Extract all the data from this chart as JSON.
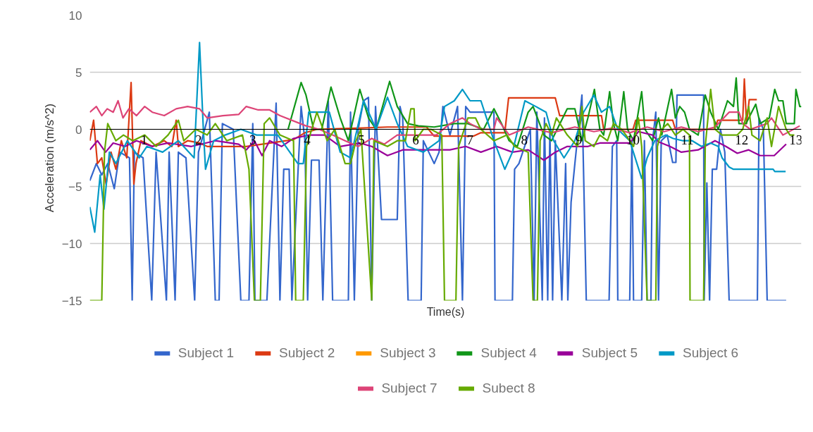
{
  "chart_data": {
    "type": "line",
    "xlabel": "Time(s)",
    "ylabel": "Acceleration (m/s^2)",
    "xlim": [
      0,
      13.1
    ],
    "ylim": [
      -15,
      10
    ],
    "yticks": [
      -15,
      -10,
      -5,
      0,
      5,
      10
    ],
    "xticks": [
      1,
      2,
      3,
      4,
      5,
      6,
      7,
      8,
      9,
      10,
      11,
      12,
      13
    ],
    "grid": "y",
    "legend": "bottom",
    "line_style": "solid",
    "series": [
      {
        "name": "Subject 1",
        "color": "#3366cc",
        "x": [
          0,
          0.12,
          0.22,
          0.33,
          0.45,
          0.55,
          0.73,
          0.78,
          0.82,
          0.98,
          1.14,
          1.22,
          1.41,
          1.46,
          1.57,
          1.63,
          1.77,
          1.93,
          2.0,
          2.2,
          2.31,
          2.38,
          2.44,
          2.64,
          2.78,
          2.93,
          3.0,
          3.04,
          3.26,
          3.43,
          3.5,
          3.57,
          3.67,
          3.72,
          3.89,
          3.96,
          4.01,
          4.08,
          4.22,
          4.29,
          4.39,
          4.47,
          4.55,
          4.76,
          4.8,
          4.87,
          4.94,
          5.04,
          5.13,
          5.19,
          5.26,
          5.37,
          5.66,
          5.71,
          5.76,
          5.86,
          6.1,
          6.14,
          6.24,
          6.34,
          6.43,
          6.5,
          6.63,
          6.77,
          6.86,
          6.92,
          7.0,
          7.2,
          7.44,
          7.46,
          7.78,
          7.82,
          7.9,
          7.97,
          8.11,
          8.18,
          8.23,
          8.33,
          8.37,
          8.43,
          8.47,
          8.52,
          8.57,
          8.69,
          8.76,
          8.8,
          8.86,
          8.93,
          9.06,
          9.14,
          9.2,
          9.56,
          9.62,
          9.7,
          9.72,
          9.94,
          9.98,
          10.01,
          10.16,
          10.21,
          10.26,
          10.33,
          10.36,
          10.42,
          10.47,
          10.52,
          10.63,
          10.73,
          10.79,
          10.81,
          11.3,
          11.31,
          11.36,
          11.41,
          11.46,
          11.54,
          11.61,
          11.69,
          11.77,
          12.29,
          12.32,
          12.4,
          12.47,
          12.82
        ],
        "values": [
          -4.5,
          -3,
          -4,
          -3,
          -5.2,
          -2,
          -2.5,
          -15,
          -2,
          -2.5,
          -15,
          -2,
          -15,
          -2,
          -15,
          -2,
          -2.5,
          -15,
          -2,
          1.5,
          -15,
          -15,
          0.5,
          0,
          -15,
          -15,
          0.5,
          -15,
          -15,
          2.3,
          -15,
          -3.5,
          -3.5,
          -15,
          2,
          -1,
          -15,
          -2.7,
          -2.7,
          -15,
          2.5,
          -15,
          -15,
          -15,
          1.5,
          -15,
          0,
          2.5,
          2.8,
          -15,
          2,
          -7.9,
          -7.9,
          2,
          1,
          -15,
          -15,
          -1,
          -2,
          -3,
          -2,
          2,
          -0.5,
          2,
          -15,
          2,
          1.5,
          1.5,
          1.5,
          -15,
          -15,
          -3.5,
          -3,
          -2,
          0,
          -15,
          1.5,
          -15,
          1,
          -15,
          0,
          -15,
          -1,
          -15,
          -3,
          -15,
          -6.4,
          -3,
          3,
          -15,
          -15,
          -15,
          -1.5,
          -1,
          -15,
          -15,
          -1,
          -15,
          -15,
          -1,
          -15,
          -15,
          -1,
          1.5,
          -15,
          -1,
          -0.5,
          -2.9,
          -2.9,
          3,
          3,
          -15,
          -4.7,
          -15,
          -3.5,
          -3.5,
          0,
          -2,
          -15,
          -15,
          1,
          0,
          -15,
          -15
        ]
      },
      {
        "name": "Subject 2",
        "color": "#dc3912",
        "x": [
          0,
          0.07,
          0.14,
          0.22,
          0.3,
          0.39,
          0.48,
          0.58,
          0.68,
          0.76,
          0.81,
          0.85,
          0.94,
          1.15,
          1.37,
          1.51,
          1.59,
          1.63,
          1.8,
          2.02,
          2.16,
          2.88,
          3.75,
          3.96,
          4.18,
          4.9,
          5.48,
          6.2,
          6.34,
          7.06,
          7.2,
          7.64,
          7.71,
          8.57,
          8.65,
          9.42,
          9.46,
          10.0,
          10.05,
          10.73,
          10.78,
          11.5,
          11.56,
          12.02,
          12.05,
          12.09,
          12.14,
          12.28
        ],
        "values": [
          -1,
          0.8,
          -3,
          -2.5,
          -4.8,
          -2,
          -3.5,
          -1,
          -2.5,
          4.1,
          -4.8,
          -3,
          -1,
          -1.5,
          -1,
          -1.5,
          0.8,
          -1.5,
          -1,
          -1.2,
          -1.5,
          -1.5,
          -0.9,
          -0.3,
          0,
          0.1,
          0.2,
          0.2,
          -0.6,
          -0.6,
          -0.3,
          -0.3,
          2.75,
          2.75,
          1.2,
          1.2,
          0,
          0,
          0.8,
          0.8,
          0,
          0,
          0.8,
          0.8,
          4.4,
          0.5,
          2.6,
          2.6
        ]
      },
      {
        "name": "Subject 3",
        "color": "#ff9900"
      },
      {
        "name": "Subject 4",
        "color": "#109618",
        "x": [
          3.65,
          3.89,
          3.98,
          4.12,
          4.27,
          4.44,
          4.61,
          4.76,
          4.97,
          5.13,
          5.27,
          5.52,
          5.66,
          5.85,
          6.05,
          6.34,
          6.71,
          6.96,
          7.25,
          7.44,
          7.58,
          7.72,
          7.87,
          8.07,
          8.16,
          8.36,
          8.5,
          8.79,
          8.93,
          9.06,
          9.17,
          9.29,
          9.39,
          9.46,
          9.57,
          9.64,
          9.72,
          9.83,
          9.9,
          10.01,
          10.16,
          10.22,
          10.36,
          10.47,
          10.53,
          10.71,
          10.78,
          10.86,
          10.95,
          11.04,
          11.2,
          11.33,
          11.43,
          11.57,
          11.74,
          11.85,
          11.9,
          11.95,
          12.08,
          12.26,
          12.34,
          12.51,
          12.61,
          12.68,
          12.76,
          12.82,
          12.97,
          13.0,
          13.07,
          13.1
        ],
        "values": [
          0,
          4.1,
          3,
          0,
          0,
          3.7,
          1,
          -1,
          3.5,
          1,
          0,
          4.2,
          2,
          0.5,
          0.3,
          0.2,
          0.5,
          0.5,
          0,
          1.8,
          0.5,
          -1,
          -1.5,
          1.5,
          2,
          -0.5,
          -1,
          1.8,
          1.8,
          -1,
          1,
          3.5,
          0,
          -0.5,
          3.3,
          0.5,
          -1,
          3.3,
          0,
          -1,
          3.3,
          0,
          -1,
          1,
          -0.5,
          3.5,
          1,
          2,
          1.5,
          0,
          -0.5,
          3,
          1.5,
          0,
          2.5,
          2,
          4.5,
          0.5,
          0.5,
          2.2,
          0.5,
          1,
          3.5,
          2.5,
          2.5,
          0.5,
          0.5,
          3.5,
          2,
          2
        ]
      },
      {
        "name": "Subject 5",
        "color": "#990099",
        "x": [
          0,
          0.14,
          0.29,
          0.43,
          0.65,
          0.86,
          1.15,
          1.44,
          1.87,
          2.31,
          2.74,
          2.88,
          3.03,
          3.17,
          3.31,
          3.53,
          3.75,
          4.03,
          4.32,
          4.61,
          4.97,
          5.19,
          5.48,
          5.76,
          6.2,
          6.63,
          6.92,
          7.2,
          7.49,
          7.78,
          8.07,
          8.36,
          8.57,
          8.79,
          9.17,
          9.39,
          9.72,
          9.94,
          10.1,
          10.36,
          10.47,
          10.68,
          10.89,
          11.2,
          11.51,
          11.71,
          11.92,
          12.13,
          12.34,
          12.6,
          12.82
        ],
        "values": [
          -1.8,
          -1,
          -2,
          -1.2,
          -1.5,
          -1,
          -1.5,
          -1.2,
          -1.5,
          -1,
          -1.3,
          -1.8,
          -1,
          -2.3,
          -1,
          -1.5,
          -0.8,
          -0.5,
          -0.5,
          -1.5,
          -1.2,
          -1.5,
          -2.3,
          -1.8,
          -1.8,
          -1.8,
          -1.5,
          -2,
          -1.5,
          -2,
          -1.8,
          -2.7,
          -2,
          -1.5,
          -1.5,
          -1.2,
          -1.2,
          -1.2,
          -0.2,
          -0.5,
          -1.1,
          -1.5,
          -2,
          -1.8,
          -1,
          -1.5,
          -2.1,
          -1.8,
          -2.3,
          -2.3,
          -1.3
        ]
      },
      {
        "name": "Subject 6",
        "color": "#0099c6",
        "x": [
          0,
          0.09,
          0.19,
          0.26,
          0.36,
          0.48,
          0.69,
          0.91,
          1.05,
          1.34,
          1.63,
          1.92,
          2.02,
          2.09,
          2.13,
          2.28,
          2.49,
          2.78,
          3.07,
          3.46,
          3.83,
          3.93,
          4.03,
          4.41,
          4.61,
          4.8,
          5.04,
          5.27,
          5.48,
          5.66,
          5.85,
          6.14,
          6.43,
          6.53,
          6.71,
          6.86,
          7.0,
          7.2,
          7.44,
          7.64,
          7.78,
          8.01,
          8.21,
          8.4,
          8.54,
          8.73,
          8.93,
          9.09,
          9.28,
          9.42,
          9.57,
          9.72,
          9.94,
          10.16,
          10.26,
          10.4,
          10.6,
          10.74,
          10.92,
          11.09,
          11.26,
          11.43,
          11.57,
          11.64,
          11.77,
          11.85,
          12.58,
          12.61,
          12.81
        ],
        "values": [
          -6.8,
          -9,
          -4,
          -7,
          -2,
          -3,
          -1,
          -2.5,
          -1.5,
          -2,
          -1,
          -2.5,
          7.6,
          0,
          -3.5,
          -1,
          -0.5,
          0,
          -0.5,
          -0.5,
          -3,
          -3,
          1.5,
          1.5,
          -2,
          -2.5,
          2.5,
          0,
          2.8,
          0.5,
          -1.5,
          -2,
          -1,
          2,
          2.5,
          3.5,
          2.5,
          2.5,
          -1,
          -3.5,
          -2,
          2.5,
          2,
          1.5,
          -1,
          -2.5,
          -1,
          1.5,
          3,
          1.5,
          2,
          0,
          -1,
          -4.3,
          -2.5,
          -1,
          -0.5,
          -0.8,
          -1,
          -1,
          -1.5,
          -1.2,
          -1.5,
          -2.5,
          -3.3,
          -3.5,
          -3.5,
          -3.7,
          -3.7
        ]
      },
      {
        "name": "Subject 7",
        "color": "#dd4477",
        "x": [
          0,
          0.12,
          0.22,
          0.32,
          0.43,
          0.52,
          0.61,
          0.72,
          0.86,
          1.01,
          1.15,
          1.37,
          1.59,
          1.8,
          2.02,
          2.16,
          2.45,
          2.74,
          2.88,
          3.1,
          3.31,
          3.5,
          3.98,
          4.22,
          4.47,
          4.7,
          4.94,
          5.19,
          5.42,
          5.66,
          5.91,
          6.14,
          6.38,
          6.63,
          6.86,
          7.0,
          7.2,
          7.44,
          7.49,
          7.72,
          8.07,
          8.5,
          8.93,
          9.28,
          9.61,
          9.94,
          10.26,
          10.57,
          10.89,
          11.2,
          11.51,
          11.77,
          11.95,
          12.02,
          12.16,
          12.47,
          12.55,
          12.76,
          13.07
        ],
        "values": [
          1.5,
          2,
          1.2,
          1.8,
          1.5,
          2.5,
          1,
          1.8,
          1.2,
          2,
          1.5,
          1.2,
          1.8,
          2,
          1.8,
          1,
          1.2,
          1.3,
          2,
          1.7,
          1.7,
          1.2,
          0.3,
          0,
          -0.5,
          -1,
          -1.5,
          -0.8,
          -1.3,
          -0.5,
          -0.5,
          -0.5,
          -0.5,
          0.5,
          1,
          0.5,
          0,
          0,
          1,
          -0.5,
          0.2,
          -0.3,
          0.2,
          -0.2,
          0.1,
          -0.3,
          0.2,
          -0.2,
          0.2,
          -0.2,
          0.2,
          1.5,
          1.5,
          0.5,
          0,
          0.5,
          1,
          -0.5,
          0.3
        ]
      },
      {
        "name": "Subect 8",
        "color": "#66aa00",
        "x": [
          0,
          0.22,
          0.27,
          0.33,
          0.48,
          0.62,
          0.79,
          1.01,
          1.22,
          1.44,
          1.63,
          1.73,
          1.95,
          2.16,
          2.31,
          2.52,
          2.81,
          2.93,
          3.03,
          3.14,
          3.21,
          3.31,
          3.5,
          3.75,
          3.79,
          3.93,
          3.99,
          4.18,
          4.37,
          4.51,
          4.7,
          4.8,
          4.9,
          4.99,
          5.19,
          5.23,
          5.48,
          5.66,
          5.81,
          5.91,
          5.97,
          5.99,
          6.14,
          6.28,
          6.48,
          6.53,
          6.74,
          6.79,
          6.96,
          7.1,
          7.2,
          7.44,
          7.68,
          7.82,
          8.07,
          8.16,
          8.24,
          8.29,
          8.4,
          8.5,
          8.59,
          8.79,
          8.98,
          9.06,
          9.12,
          9.28,
          9.39,
          9.53,
          9.64,
          9.79,
          9.87,
          10.01,
          10.1,
          10.16,
          10.26,
          10.42,
          10.45,
          10.53,
          10.64,
          10.78,
          10.92,
          11.04,
          11.05,
          11.3,
          11.33,
          11.43,
          11.51,
          11.64,
          11.92,
          12.02,
          12.13,
          12.19,
          12.34,
          12.47,
          12.55,
          12.68,
          12.82,
          12.89,
          12.97
        ],
        "values": [
          -15,
          -15,
          -2,
          0.5,
          -1,
          -0.5,
          -1,
          -0.5,
          -1.5,
          -0.5,
          0.8,
          -1,
          0,
          -0.5,
          0.5,
          -1,
          -0.5,
          -3.5,
          -15,
          -15,
          0.5,
          1,
          -0.5,
          -1,
          -15,
          -15,
          -1.5,
          1.5,
          -1,
          0,
          -3,
          -3,
          -1,
          0,
          -15,
          -1,
          -1.5,
          -1,
          -1,
          1.8,
          1.8,
          -1,
          0,
          0,
          -0.5,
          -15,
          -15,
          -1.5,
          1,
          1,
          0,
          -1,
          -0.5,
          -1.5,
          -2,
          -15,
          -15,
          -1,
          0.5,
          -0.5,
          1,
          -0.5,
          -1.5,
          2,
          -1,
          -1.5,
          -0.5,
          -1,
          0.5,
          0,
          -0.5,
          -1.5,
          1,
          -1.5,
          -15,
          -15,
          -1.5,
          0,
          0.5,
          -0.5,
          0,
          -0.5,
          -15,
          -15,
          -1.5,
          3.5,
          0,
          -0.5,
          -0.5,
          0,
          2,
          -0.5,
          -1,
          1,
          -1.5,
          2,
          0,
          -0.5,
          -0.5
        ]
      }
    ]
  }
}
